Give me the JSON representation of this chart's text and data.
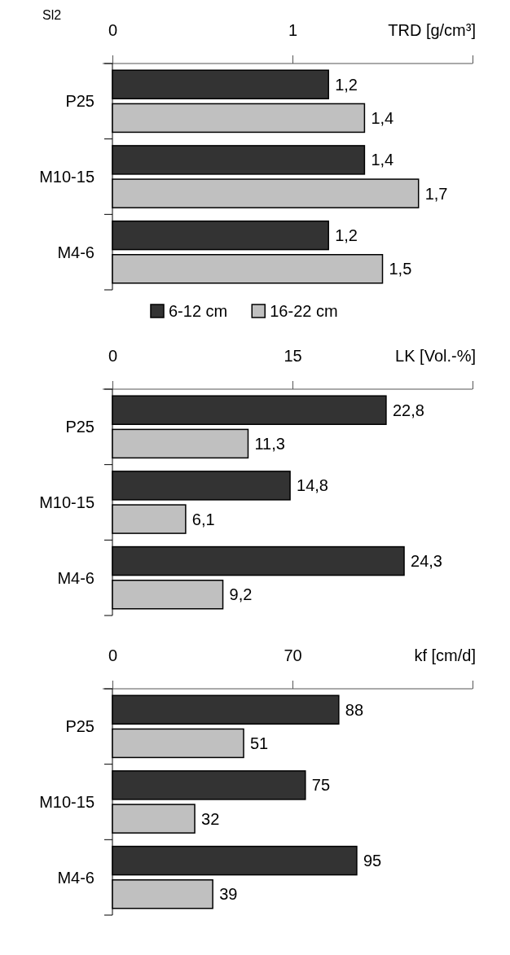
{
  "chart_data": [
    {
      "type": "bar",
      "orientation": "horizontal",
      "title": "Sl2",
      "xlabel": "TRD [g/cm³]",
      "categories": [
        "P25",
        "M10-15",
        "M4-6"
      ],
      "xlim": [
        0,
        2
      ],
      "xticks": [
        0,
        1,
        {
          "value": 2,
          "label": null
        }
      ],
      "legend": "bottom left",
      "series": [
        {
          "name": "6-12 cm",
          "color": "#333333",
          "values": [
            1.2,
            1.4,
            1.2
          ],
          "value_labels": [
            "1,2",
            "1,4",
            "1,2"
          ]
        },
        {
          "name": "16-22 cm",
          "color": "#c0c0c0",
          "values": [
            1.4,
            1.7,
            1.5
          ],
          "value_labels": [
            "1,4",
            "1,7",
            "1,5"
          ]
        }
      ]
    },
    {
      "type": "bar",
      "orientation": "horizontal",
      "xlabel": "LK [Vol.-%]",
      "categories": [
        "P25",
        "M10-15",
        "M4-6"
      ],
      "xlim": [
        0,
        30
      ],
      "xticks": [
        0,
        15,
        {
          "value": 30,
          "label": null
        }
      ],
      "series": [
        {
          "color": "#333333",
          "values": [
            22.8,
            14.8,
            24.3
          ],
          "value_labels": [
            "22,8",
            "14,8",
            "24,3"
          ]
        },
        {
          "color": "#c0c0c0",
          "values": [
            11.3,
            6.1,
            9.2
          ],
          "value_labels": [
            "11,3",
            "6,1",
            "9,2"
          ]
        }
      ]
    },
    {
      "type": "bar",
      "orientation": "horizontal",
      "xlabel": "kf [cm/d]",
      "categories": [
        "P25",
        "M10-15",
        "M4-6"
      ],
      "xlim": [
        0,
        140
      ],
      "xticks": [
        0,
        70,
        {
          "value": 140,
          "label": null
        }
      ],
      "series": [
        {
          "color": "#333333",
          "values": [
            88,
            75,
            95
          ],
          "value_labels": [
            "88",
            "75",
            "95"
          ]
        },
        {
          "color": "#c0c0c0",
          "values": [
            51,
            32,
            39
          ],
          "value_labels": [
            "51",
            "32",
            "39"
          ]
        }
      ]
    }
  ]
}
